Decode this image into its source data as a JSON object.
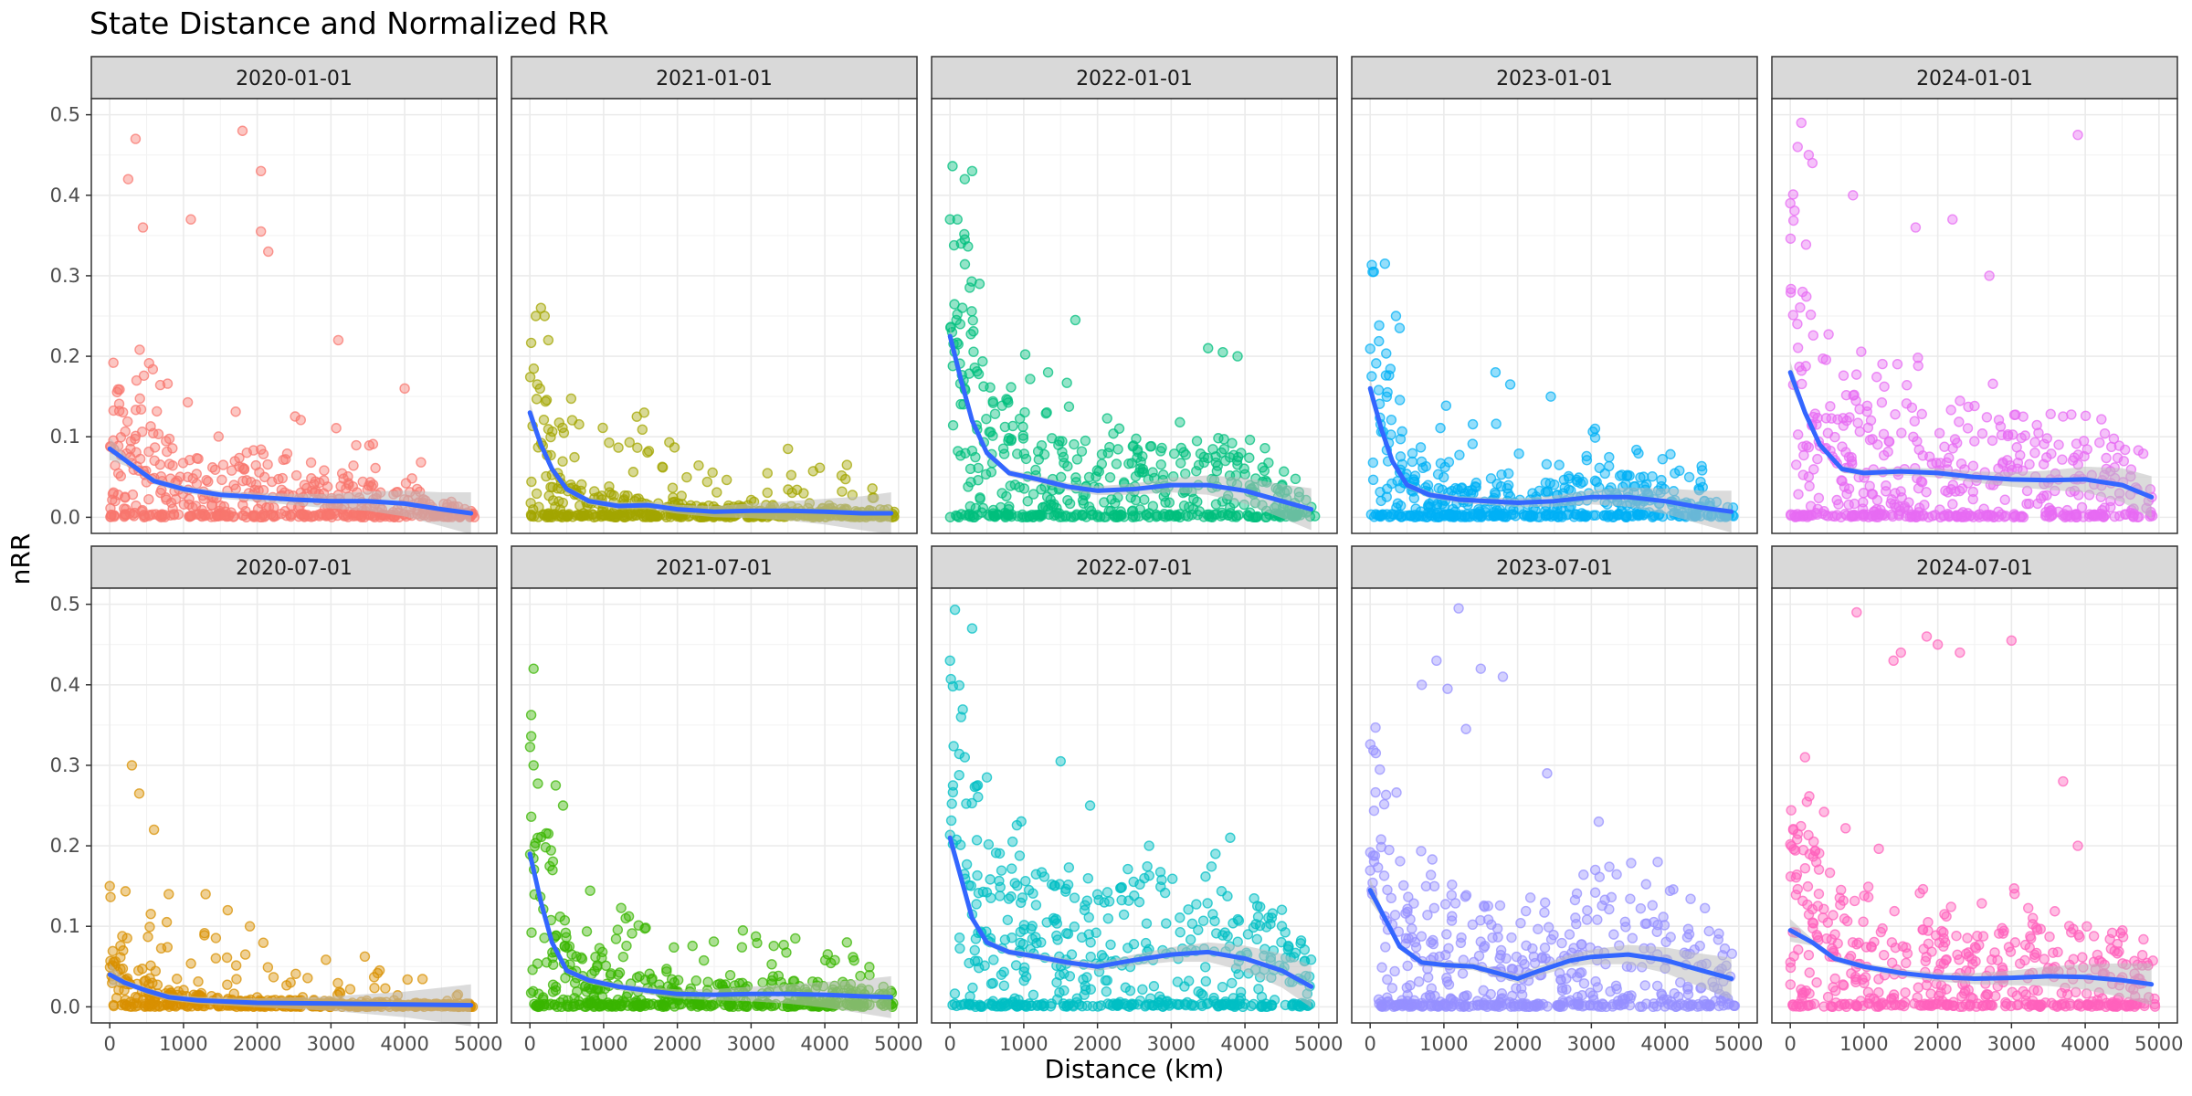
{
  "chart_data": {
    "type": "scatter",
    "title": "State Distance and Normalized RR",
    "xlabel": "Distance (km)",
    "ylabel": "nRR",
    "xlim": [
      -250,
      5250
    ],
    "ylim": [
      -0.02,
      0.52
    ],
    "x_ticks": [
      0,
      1000,
      2000,
      3000,
      4000,
      5000
    ],
    "y_ticks": [
      0.0,
      0.1,
      0.2,
      0.3,
      0.4,
      0.5
    ],
    "x_tick_labels": [
      "0",
      "1000",
      "2000",
      "3000",
      "4000",
      "5000"
    ],
    "y_tick_labels": [
      "0.0",
      "0.1",
      "0.2",
      "0.3",
      "0.4",
      "0.5"
    ],
    "grid": true,
    "layout": "2 rows x 5 columns facet grid",
    "smooth_color": "#3366ff",
    "confidence_band_color": "#bdbdbd",
    "panels": [
      {
        "label": "2020-01-01",
        "color": "#F8766D",
        "level": 0.04,
        "spread": 0.6,
        "smooth": [
          [
            0,
            0.085
          ],
          [
            300,
            0.065
          ],
          [
            600,
            0.045
          ],
          [
            1000,
            0.035
          ],
          [
            1500,
            0.028
          ],
          [
            2000,
            0.025
          ],
          [
            2500,
            0.022
          ],
          [
            3000,
            0.02
          ],
          [
            3500,
            0.02
          ],
          [
            4000,
            0.017
          ],
          [
            4500,
            0.01
          ],
          [
            4900,
            0.005
          ]
        ],
        "highlights": [
          [
            350,
            0.47
          ],
          [
            1800,
            0.48
          ],
          [
            2050,
            0.43
          ],
          [
            250,
            0.42
          ],
          [
            450,
            0.36
          ],
          [
            1100,
            0.37
          ],
          [
            2050,
            0.355
          ],
          [
            2150,
            0.33
          ],
          [
            3100,
            0.22
          ],
          [
            4000,
            0.16
          ]
        ]
      },
      {
        "label": "2021-01-01",
        "color": "#A3A500",
        "level": 0.015,
        "spread": 0.4,
        "smooth": [
          [
            0,
            0.13
          ],
          [
            150,
            0.09
          ],
          [
            300,
            0.06
          ],
          [
            500,
            0.035
          ],
          [
            800,
            0.02
          ],
          [
            1200,
            0.014
          ],
          [
            1600,
            0.015
          ],
          [
            2000,
            0.01
          ],
          [
            2500,
            0.007
          ],
          [
            3000,
            0.008
          ],
          [
            3500,
            0.008
          ],
          [
            4000,
            0.007
          ],
          [
            4500,
            0.005
          ],
          [
            4900,
            0.005
          ]
        ],
        "highlights": [
          [
            150,
            0.26
          ],
          [
            200,
            0.25
          ],
          [
            80,
            0.25
          ],
          [
            250,
            0.22
          ],
          [
            100,
            0.165
          ],
          [
            1550,
            0.13
          ],
          [
            1450,
            0.125
          ],
          [
            3500,
            0.085
          ],
          [
            4300,
            0.065
          ]
        ]
      },
      {
        "label": "2022-01-01",
        "color": "#00BF7D",
        "level": 0.055,
        "spread": 0.7,
        "smooth": [
          [
            0,
            0.225
          ],
          [
            150,
            0.17
          ],
          [
            300,
            0.12
          ],
          [
            500,
            0.08
          ],
          [
            800,
            0.055
          ],
          [
            1200,
            0.047
          ],
          [
            1600,
            0.038
          ],
          [
            2000,
            0.033
          ],
          [
            2500,
            0.035
          ],
          [
            3000,
            0.04
          ],
          [
            3500,
            0.04
          ],
          [
            4000,
            0.033
          ],
          [
            4500,
            0.02
          ],
          [
            4900,
            0.01
          ]
        ],
        "highlights": [
          [
            300,
            0.43
          ],
          [
            200,
            0.42
          ],
          [
            0,
            0.37
          ],
          [
            100,
            0.37
          ],
          [
            200,
            0.345
          ],
          [
            150,
            0.34
          ],
          [
            400,
            0.29
          ],
          [
            1700,
            0.245
          ],
          [
            3500,
            0.21
          ],
          [
            3700,
            0.205
          ],
          [
            3900,
            0.2
          ]
        ]
      },
      {
        "label": "2023-01-01",
        "color": "#00B0F6",
        "level": 0.03,
        "spread": 0.5,
        "smooth": [
          [
            0,
            0.16
          ],
          [
            150,
            0.11
          ],
          [
            300,
            0.07
          ],
          [
            500,
            0.04
          ],
          [
            800,
            0.028
          ],
          [
            1200,
            0.022
          ],
          [
            1600,
            0.02
          ],
          [
            2000,
            0.018
          ],
          [
            2500,
            0.02
          ],
          [
            3000,
            0.025
          ],
          [
            3500,
            0.025
          ],
          [
            4000,
            0.02
          ],
          [
            4500,
            0.012
          ],
          [
            4900,
            0.007
          ]
        ],
        "highlights": [
          [
            200,
            0.315
          ],
          [
            50,
            0.305
          ],
          [
            350,
            0.25
          ],
          [
            400,
            0.235
          ],
          [
            1700,
            0.18
          ],
          [
            1900,
            0.165
          ],
          [
            2450,
            0.15
          ],
          [
            3050,
            0.11
          ]
        ]
      },
      {
        "label": "2024-01-01",
        "color": "#E76BF3",
        "level": 0.07,
        "spread": 0.8,
        "smooth": [
          [
            0,
            0.18
          ],
          [
            200,
            0.13
          ],
          [
            400,
            0.09
          ],
          [
            700,
            0.06
          ],
          [
            1000,
            0.055
          ],
          [
            1500,
            0.057
          ],
          [
            2000,
            0.055
          ],
          [
            2500,
            0.05
          ],
          [
            3000,
            0.047
          ],
          [
            3500,
            0.046
          ],
          [
            4000,
            0.047
          ],
          [
            4500,
            0.04
          ],
          [
            4900,
            0.025
          ]
        ],
        "highlights": [
          [
            150,
            0.49
          ],
          [
            100,
            0.46
          ],
          [
            250,
            0.45
          ],
          [
            300,
            0.44
          ],
          [
            850,
            0.4
          ],
          [
            0,
            0.39
          ],
          [
            3900,
            0.475
          ],
          [
            1700,
            0.36
          ],
          [
            2200,
            0.37
          ],
          [
            2700,
            0.3
          ]
        ]
      },
      {
        "label": "2020-07-01",
        "color": "#D89000",
        "level": 0.015,
        "spread": 0.35,
        "smooth": [
          [
            0,
            0.04
          ],
          [
            200,
            0.03
          ],
          [
            500,
            0.02
          ],
          [
            800,
            0.012
          ],
          [
            1200,
            0.008
          ],
          [
            2000,
            0.005
          ],
          [
            3000,
            0.004
          ],
          [
            4000,
            0.003
          ],
          [
            4900,
            0.002
          ]
        ],
        "highlights": [
          [
            300,
            0.3
          ],
          [
            400,
            0.265
          ],
          [
            600,
            0.22
          ],
          [
            0,
            0.15
          ],
          [
            800,
            0.14
          ],
          [
            1300,
            0.14
          ],
          [
            1600,
            0.12
          ],
          [
            1900,
            0.1
          ]
        ]
      },
      {
        "label": "2021-07-01",
        "color": "#39B600",
        "level": 0.025,
        "spread": 0.45,
        "smooth": [
          [
            0,
            0.19
          ],
          [
            150,
            0.13
          ],
          [
            300,
            0.08
          ],
          [
            500,
            0.045
          ],
          [
            800,
            0.033
          ],
          [
            1200,
            0.025
          ],
          [
            1600,
            0.02
          ],
          [
            2000,
            0.016
          ],
          [
            2500,
            0.015
          ],
          [
            3000,
            0.016
          ],
          [
            3500,
            0.016
          ],
          [
            4000,
            0.015
          ],
          [
            4500,
            0.013
          ],
          [
            4900,
            0.012
          ]
        ],
        "highlights": [
          [
            50,
            0.42
          ],
          [
            50,
            0.3
          ],
          [
            350,
            0.275
          ],
          [
            450,
            0.25
          ],
          [
            250,
            0.215
          ],
          [
            1300,
            0.11
          ],
          [
            3600,
            0.085
          ],
          [
            4300,
            0.08
          ]
        ]
      },
      {
        "label": "2022-07-01",
        "color": "#00BFC4",
        "level": 0.08,
        "spread": 0.8,
        "smooth": [
          [
            0,
            0.21
          ],
          [
            150,
            0.16
          ],
          [
            300,
            0.11
          ],
          [
            500,
            0.08
          ],
          [
            800,
            0.068
          ],
          [
            1200,
            0.062
          ],
          [
            1600,
            0.055
          ],
          [
            2000,
            0.05
          ],
          [
            2500,
            0.058
          ],
          [
            3000,
            0.065
          ],
          [
            3500,
            0.068
          ],
          [
            4000,
            0.06
          ],
          [
            4500,
            0.045
          ],
          [
            4900,
            0.025
          ]
        ],
        "highlights": [
          [
            300,
            0.47
          ],
          [
            0,
            0.43
          ],
          [
            150,
            0.36
          ],
          [
            200,
            0.31
          ],
          [
            500,
            0.285
          ],
          [
            1500,
            0.305
          ],
          [
            1900,
            0.25
          ],
          [
            3800,
            0.21
          ],
          [
            3600,
            0.19
          ],
          [
            2700,
            0.2
          ]
        ]
      },
      {
        "label": "2023-07-01",
        "color": "#9590FF",
        "level": 0.06,
        "spread": 0.8,
        "smooth": [
          [
            0,
            0.145
          ],
          [
            200,
            0.11
          ],
          [
            400,
            0.075
          ],
          [
            700,
            0.055
          ],
          [
            1000,
            0.052
          ],
          [
            1400,
            0.05
          ],
          [
            1800,
            0.04
          ],
          [
            2000,
            0.035
          ],
          [
            2300,
            0.045
          ],
          [
            2700,
            0.057
          ],
          [
            3000,
            0.062
          ],
          [
            3500,
            0.065
          ],
          [
            4000,
            0.058
          ],
          [
            4500,
            0.045
          ],
          [
            4900,
            0.035
          ]
        ],
        "highlights": [
          [
            1200,
            0.495
          ],
          [
            1500,
            0.42
          ],
          [
            1300,
            0.345
          ],
          [
            900,
            0.43
          ],
          [
            1800,
            0.41
          ],
          [
            1050,
            0.395
          ],
          [
            700,
            0.4
          ],
          [
            2400,
            0.29
          ],
          [
            3100,
            0.23
          ],
          [
            3900,
            0.18
          ]
        ]
      },
      {
        "label": "2024-07-01",
        "color": "#FF62BC",
        "level": 0.07,
        "spread": 0.8,
        "smooth": [
          [
            0,
            0.095
          ],
          [
            300,
            0.08
          ],
          [
            600,
            0.06
          ],
          [
            1000,
            0.05
          ],
          [
            1500,
            0.042
          ],
          [
            2000,
            0.037
          ],
          [
            2500,
            0.035
          ],
          [
            3000,
            0.036
          ],
          [
            3500,
            0.038
          ],
          [
            4000,
            0.037
          ],
          [
            4500,
            0.033
          ],
          [
            4900,
            0.028
          ]
        ],
        "highlights": [
          [
            900,
            0.49
          ],
          [
            1500,
            0.44
          ],
          [
            1400,
            0.43
          ],
          [
            1850,
            0.46
          ],
          [
            2000,
            0.45
          ],
          [
            3000,
            0.455
          ],
          [
            2300,
            0.44
          ],
          [
            200,
            0.31
          ],
          [
            3700,
            0.28
          ],
          [
            3900,
            0.2
          ]
        ]
      }
    ]
  }
}
